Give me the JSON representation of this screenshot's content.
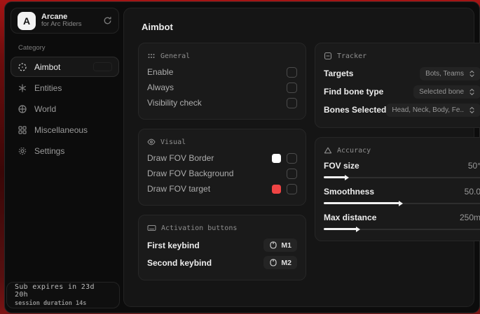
{
  "brand": {
    "logo_letter": "A",
    "name": "Arcane",
    "subtitle": "for Arc Riders"
  },
  "sidebar": {
    "category_label": "Category",
    "items": [
      {
        "label": "Aimbot"
      },
      {
        "label": "Entities"
      },
      {
        "label": "World"
      },
      {
        "label": "Miscellaneous"
      },
      {
        "label": "Settings"
      }
    ],
    "footer": {
      "line1": "Sub expires in 23d 20h",
      "line2": "session duration 14s"
    }
  },
  "main": {
    "title": "Aimbot"
  },
  "general": {
    "title": "General",
    "rows": [
      {
        "label": "Enable"
      },
      {
        "label": "Always"
      },
      {
        "label": "Visibility check"
      }
    ]
  },
  "visual": {
    "title": "Visual",
    "rows": [
      {
        "label": "Draw FOV Border",
        "swatch": "#ffffff"
      },
      {
        "label": "Draw FOV Background"
      },
      {
        "label": "Draw FOV target",
        "swatch": "#ef4444"
      }
    ]
  },
  "activation": {
    "title": "Activation buttons",
    "rows": [
      {
        "label": "First keybind",
        "key": "M1"
      },
      {
        "label": "Second keybind",
        "key": "M2"
      }
    ]
  },
  "tracker": {
    "title": "Tracker",
    "rows": [
      {
        "label": "Targets",
        "value": "Bots, Teams"
      },
      {
        "label": "Find bone type",
        "value": "Selected bone"
      },
      {
        "label": "Bones Selected",
        "value": "Head, Neck, Body, Fe.."
      }
    ]
  },
  "accuracy": {
    "title": "Accuracy",
    "rows": [
      {
        "label": "FOV size",
        "value": "50°",
        "fill": 14
      },
      {
        "label": "Smoothness",
        "value": "50.0",
        "fill": 48
      },
      {
        "label": "Max distance",
        "value": "250m",
        "fill": 21
      }
    ]
  },
  "colors": {
    "accent_red": "#ef4444",
    "swatch_white": "#ffffff"
  }
}
